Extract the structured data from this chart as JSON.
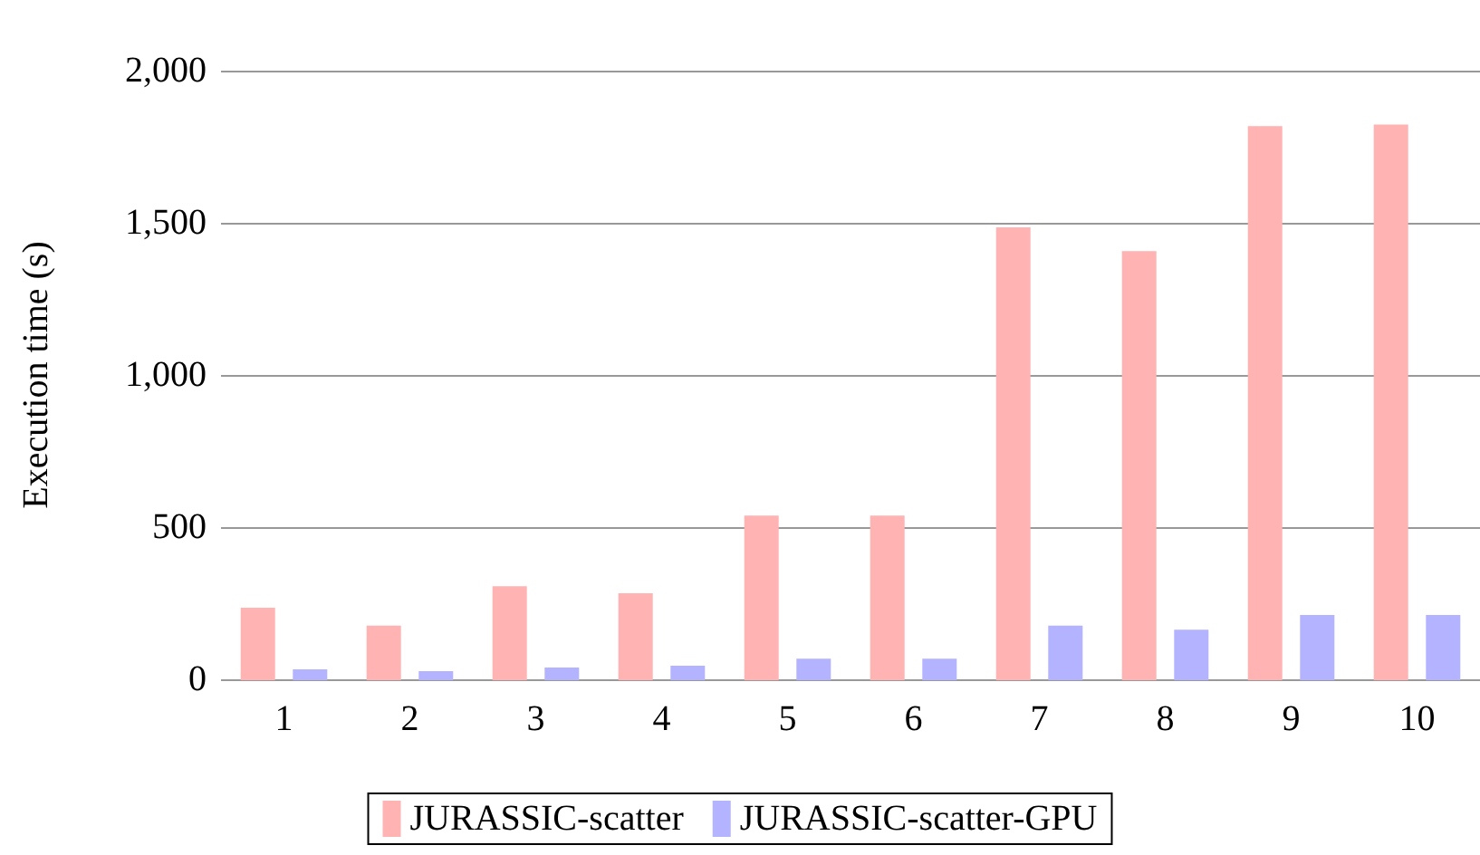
{
  "chart_data": {
    "type": "bar",
    "ylabel": "Execution time (s)",
    "categories": [
      "1",
      "2",
      "3",
      "4",
      "5",
      "6",
      "7",
      "8",
      "9",
      "10"
    ],
    "series": [
      {
        "name": "JURASSIC-scatter",
        "color": "#ffb3b3",
        "values": [
          232,
          173,
          303,
          280,
          535,
          535,
          1482,
          1404,
          1815,
          1820
        ]
      },
      {
        "name": "JURASSIC-scatter-GPU",
        "color": "#b3b3ff",
        "values": [
          30,
          24,
          36,
          42,
          65,
          65,
          173,
          160,
          208,
          208
        ]
      }
    ],
    "ylim": [
      0,
      2000
    ],
    "yticks": [
      0,
      {
        "value": 500,
        "label": "500"
      },
      {
        "value": 1000,
        "label": "1,000"
      },
      {
        "value": 1500,
        "label": "1,500"
      },
      {
        "value": 2000,
        "label": "2,000"
      }
    ],
    "grid": "y",
    "legend": "bottom"
  }
}
